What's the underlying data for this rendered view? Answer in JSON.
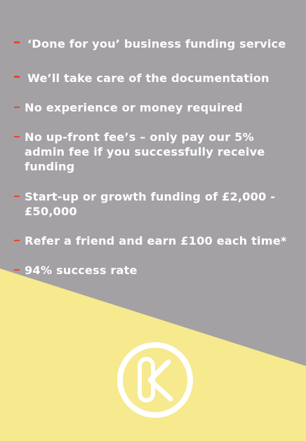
{
  "features": [
    "‘Done for you’ business funding service",
    "We’ll take care of the documentation",
    "No experience or money required",
    "No up-front fee’s – only pay our 5% admin fee if you successfully receive funding",
    "Start-up or growth funding of £2,000 - £50,000",
    "Refer a friend and earn £100 each time*",
    "94% success rate"
  ],
  "colors": {
    "background_grey": "#a3a1a4",
    "accent_yellow": "#f6e98e",
    "bullet_red": "#e8462b",
    "text": "#ffffff"
  },
  "logo": {
    "icon": "k-circle-logo-icon"
  }
}
